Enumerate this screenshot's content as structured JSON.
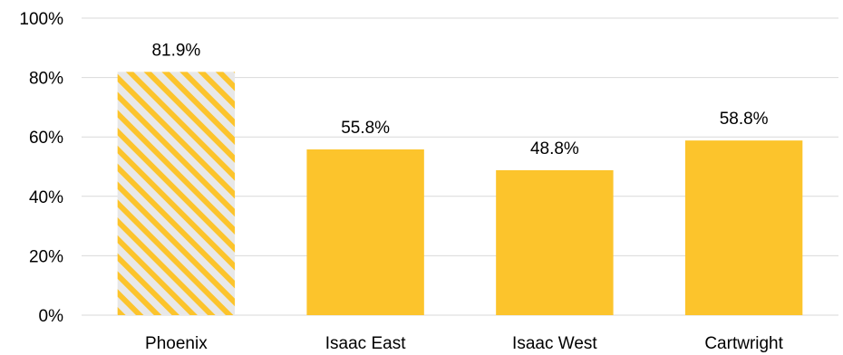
{
  "chart_data": {
    "type": "bar",
    "categories": [
      "Phoenix",
      "Isaac East",
      "Isaac West",
      "Cartwright"
    ],
    "values": [
      81.9,
      55.8,
      48.8,
      58.8
    ],
    "value_labels": [
      "81.9%",
      "55.8%",
      "48.8%",
      "58.8%"
    ],
    "title": "",
    "xlabel": "",
    "ylabel": "",
    "ylim": [
      0,
      100
    ],
    "y_ticks": [
      0,
      20,
      40,
      60,
      80,
      100
    ],
    "y_tick_labels": [
      "0%",
      "20%",
      "40%",
      "60%",
      "80%",
      "100%"
    ],
    "grid": true,
    "legend": "none",
    "bar_color": "#fcc42c",
    "highlight": {
      "index": 0,
      "pattern": "diagonal-stripes",
      "stripe_color": "#fcc42c",
      "background_color": "#e8e8e8"
    }
  }
}
